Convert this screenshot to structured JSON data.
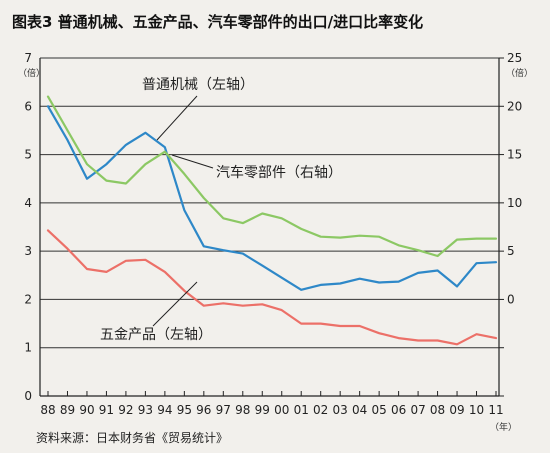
{
  "chart_data": {
    "type": "line",
    "title": "图表3  普通机械、五金产品、汽车零部件的出口/进口比率变化",
    "source": "资料来源：日本财务省《贸易统计》",
    "left_axis": {
      "unit": "（倍）",
      "ylim": [
        0,
        7
      ],
      "ticks": [
        0,
        1,
        2,
        3,
        4,
        5,
        6,
        7
      ]
    },
    "right_axis": {
      "unit": "（倍）",
      "ylim": [
        -10,
        25
      ],
      "ticks": [
        "",
        "",
        "0",
        "5",
        "10",
        "15",
        "20",
        "25"
      ]
    },
    "x_unit": "（年）",
    "x": [
      "88",
      "89",
      "90",
      "91",
      "92",
      "93",
      "94",
      "95",
      "96",
      "97",
      "98",
      "99",
      "00",
      "01",
      "02",
      "03",
      "04",
      "05",
      "06",
      "07",
      "08",
      "09",
      "10",
      "11"
    ],
    "grid": "horizontal",
    "series": [
      {
        "name": "普通机械（左轴）",
        "axis": "left",
        "color": "#2e88c8",
        "values": [
          6.0,
          5.3,
          4.5,
          4.8,
          5.2,
          5.45,
          5.15,
          3.85,
          3.1,
          3.02,
          2.95,
          2.7,
          2.45,
          2.2,
          2.3,
          2.33,
          2.43,
          2.35,
          2.37,
          2.55,
          2.6,
          2.27,
          2.75,
          2.77
        ]
      },
      {
        "name": "汽车零部件（右轴）",
        "axis": "right",
        "color": "#8cc864",
        "values": [
          21.0,
          17.5,
          14.0,
          12.3,
          12.0,
          14.0,
          15.3,
          13.0,
          10.5,
          8.4,
          7.9,
          8.9,
          8.4,
          7.3,
          6.5,
          6.4,
          6.6,
          6.5,
          5.6,
          5.1,
          4.5,
          6.2,
          6.3,
          6.3
        ]
      },
      {
        "name": "五金产品（左轴）",
        "axis": "left",
        "color": "#ec7068",
        "values": [
          3.43,
          3.05,
          2.63,
          2.57,
          2.8,
          2.82,
          2.57,
          2.18,
          1.87,
          1.92,
          1.87,
          1.9,
          1.78,
          1.5,
          1.5,
          1.45,
          1.45,
          1.3,
          1.2,
          1.15,
          1.15,
          1.07,
          1.28,
          1.2
        ]
      }
    ]
  }
}
